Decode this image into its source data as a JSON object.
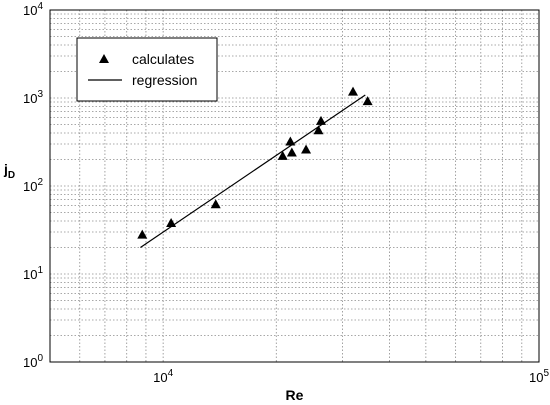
{
  "chart_data": {
    "type": "scatter",
    "xlabel": "Re",
    "ylabel_main": "j",
    "ylabel_sub": "D",
    "x_scale": "log",
    "y_scale": "log",
    "xlim": [
      5000,
      100000
    ],
    "ylim": [
      1,
      10000
    ],
    "grid": true,
    "legend_position": "top-left",
    "x_ticks": [
      {
        "value": 10000,
        "base": "10",
        "exp": "4"
      },
      {
        "value": 100000,
        "base": "10",
        "exp": "5"
      }
    ],
    "y_ticks": [
      {
        "value": 1,
        "base": "10",
        "exp": "0"
      },
      {
        "value": 10,
        "base": "10",
        "exp": "1"
      },
      {
        "value": 100,
        "base": "10",
        "exp": "2"
      },
      {
        "value": 1000,
        "base": "10",
        "exp": "3"
      },
      {
        "value": 10000,
        "base": "10",
        "exp": "4"
      }
    ],
    "series": [
      {
        "name": "calculates",
        "marker": "triangle",
        "points": [
          {
            "x": 8800,
            "y": 28
          },
          {
            "x": 10500,
            "y": 38
          },
          {
            "x": 13800,
            "y": 62
          },
          {
            "x": 20800,
            "y": 220
          },
          {
            "x": 21800,
            "y": 320
          },
          {
            "x": 22000,
            "y": 240
          },
          {
            "x": 24000,
            "y": 260
          },
          {
            "x": 25900,
            "y": 430
          },
          {
            "x": 26300,
            "y": 550
          },
          {
            "x": 32000,
            "y": 1180
          },
          {
            "x": 35000,
            "y": 920
          }
        ]
      },
      {
        "name": "regression",
        "marker": "line",
        "points": [
          {
            "x": 8700,
            "y": 20
          },
          {
            "x": 34500,
            "y": 1080
          }
        ]
      }
    ]
  }
}
